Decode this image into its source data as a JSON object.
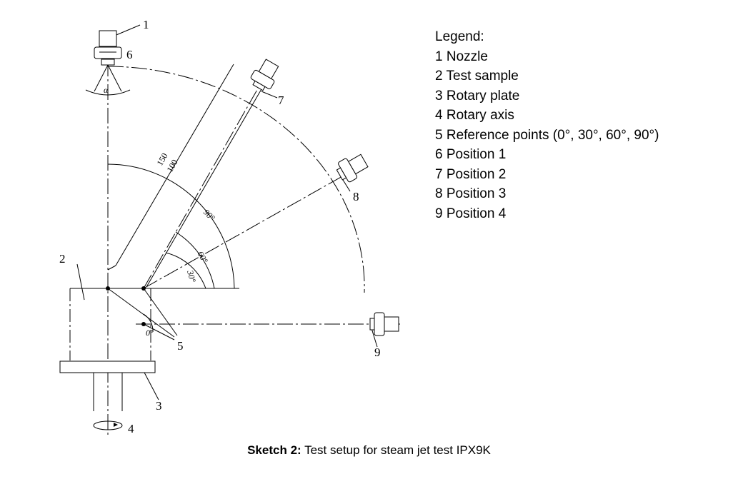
{
  "legend": {
    "title": "Legend:",
    "items": [
      "1 Nozzle",
      "2 Test sample",
      "3 Rotary plate",
      "4 Rotary axis",
      "5 Reference points (0°, 30°, 60°, 90°)",
      "6 Position 1",
      "7 Position 2",
      "8 Position 3",
      "9 Position 4"
    ]
  },
  "diagram": {
    "callouts": [
      "1",
      "2",
      "3",
      "4",
      "5",
      "6",
      "7",
      "8",
      "9"
    ],
    "angle_labels": [
      "90°",
      "60°",
      "30°",
      "0°",
      "α"
    ],
    "dimension_labels": [
      "150",
      "100"
    ]
  },
  "caption": {
    "bold": "Sketch 2:",
    "text": " Test setup for steam jet test IPX9K"
  }
}
